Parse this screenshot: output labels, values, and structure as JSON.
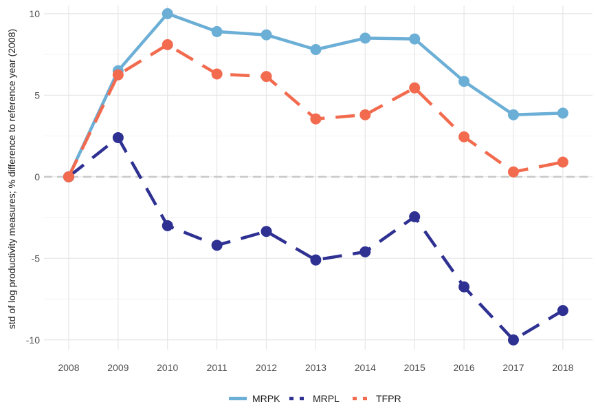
{
  "chart_data": {
    "type": "line",
    "title": "",
    "xlabel": "",
    "ylabel": "std of log productivity measures; % difference to reference year (2008)",
    "x": [
      2008,
      2009,
      2010,
      2011,
      2012,
      2013,
      2014,
      2015,
      2016,
      2017,
      2018
    ],
    "xticks": [
      "2008",
      "2009",
      "2010",
      "2011",
      "2012",
      "2013",
      "2014",
      "2015",
      "2016",
      "2017",
      "2018"
    ],
    "yticks": [
      10,
      5,
      0,
      -5,
      -10
    ],
    "ytick_labels": [
      "10",
      "5",
      "0",
      "-5",
      "-10"
    ],
    "ylim": [
      -10.6,
      10.5
    ],
    "xlim": [
      2007.5,
      2018.6
    ],
    "grid": true,
    "reference_line": {
      "y": 0,
      "style": "dashed",
      "color": "#c8c8c8"
    },
    "legend_position": "bottom",
    "series": [
      {
        "name": "MRPK",
        "color": "#6baed6",
        "dash": "solid",
        "values": [
          0.0,
          6.5,
          10.0,
          8.9,
          8.7,
          7.8,
          8.5,
          8.45,
          5.85,
          3.8,
          3.9
        ]
      },
      {
        "name": "MRPL",
        "color": "#2e3192",
        "dash": "dashed",
        "values": [
          0.0,
          2.4,
          -3.0,
          -4.2,
          -3.35,
          -5.1,
          -4.6,
          -2.45,
          -6.75,
          -10.0,
          -8.2
        ]
      },
      {
        "name": "TFPR",
        "color": "#f26b4f",
        "dash": "dashed",
        "values": [
          0.0,
          6.25,
          8.1,
          6.3,
          6.15,
          3.55,
          3.8,
          5.45,
          2.45,
          0.3,
          0.9
        ]
      }
    ]
  }
}
